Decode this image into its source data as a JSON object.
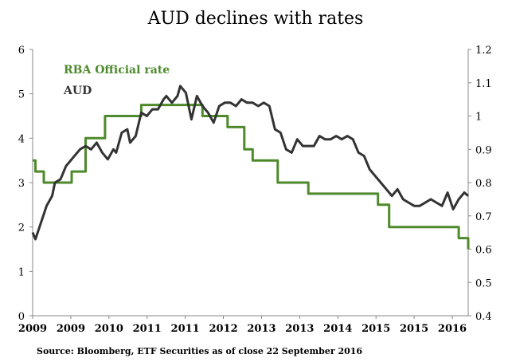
{
  "chart_data": {
    "type": "line",
    "title": "AUD declines with rates",
    "source": "Source: Bloomberg, ETF Securities as of close 22 September 2016",
    "x_tick_labels": [
      "2009",
      "2009",
      "2010",
      "2011",
      "2011",
      "2012",
      "2013",
      "2013",
      "2014",
      "2015",
      "2015",
      "2016"
    ],
    "left_axis": {
      "ylim": [
        0,
        6
      ],
      "ticks": [
        "0",
        "1",
        "2",
        "3",
        "4",
        "5",
        "6"
      ]
    },
    "right_axis": {
      "ylim": [
        0.4,
        1.2
      ],
      "ticks": [
        "0.4",
        "0.5",
        "0.6",
        "0.7",
        "0.8",
        "0.9",
        "1",
        "1.1",
        "1.2"
      ]
    },
    "xlim": [
      2008.9,
      2016.72
    ],
    "series": [
      {
        "name": "RBA Official rate",
        "axis": "left",
        "color": "#4e8a2c",
        "step": true,
        "x": [
          2008.9,
          2008.95,
          2009.1,
          2009.6,
          2009.85,
          2010.2,
          2010.85,
          2011.3,
          2011.95,
          2012.4,
          2012.7,
          2012.85,
          2013.3,
          2013.5,
          2013.85,
          2015.1,
          2015.3,
          2016.2,
          2016.55,
          2016.72
        ],
        "values": [
          3.5,
          3.25,
          3.0,
          3.25,
          4.0,
          4.5,
          4.75,
          4.75,
          4.5,
          4.25,
          3.75,
          3.5,
          3.0,
          3.0,
          2.75,
          2.5,
          2.0,
          2.0,
          1.75,
          1.5
        ]
      },
      {
        "name": "AUD",
        "axis": "right",
        "color": "#333333",
        "x": [
          2008.9,
          2008.95,
          2009.05,
          2009.15,
          2009.25,
          2009.3,
          2009.4,
          2009.5,
          2009.55,
          2009.65,
          2009.75,
          2009.85,
          2009.95,
          2010.05,
          2010.15,
          2010.25,
          2010.35,
          2010.4,
          2010.5,
          2010.6,
          2010.65,
          2010.75,
          2010.85,
          2010.95,
          2011.05,
          2011.15,
          2011.25,
          2011.3,
          2011.4,
          2011.5,
          2011.55,
          2011.65,
          2011.75,
          2011.85,
          2011.95,
          2012.05,
          2012.15,
          2012.25,
          2012.35,
          2012.45,
          2012.55,
          2012.65,
          2012.75,
          2012.85,
          2012.95,
          2013.05,
          2013.15,
          2013.25,
          2013.35,
          2013.45,
          2013.55,
          2013.65,
          2013.75,
          2013.85,
          2013.95,
          2014.05,
          2014.15,
          2014.25,
          2014.35,
          2014.45,
          2014.55,
          2014.65,
          2014.75,
          2014.85,
          2014.95,
          2015.05,
          2015.15,
          2015.25,
          2015.35,
          2015.45,
          2015.55,
          2015.65,
          2015.75,
          2015.85,
          2015.95,
          2016.05,
          2016.15,
          2016.25,
          2016.35,
          2016.45,
          2016.55,
          2016.65,
          2016.72
        ],
        "values": [
          0.65,
          0.63,
          0.68,
          0.73,
          0.76,
          0.8,
          0.81,
          0.85,
          0.86,
          0.88,
          0.9,
          0.91,
          0.9,
          0.92,
          0.89,
          0.87,
          0.9,
          0.89,
          0.95,
          0.96,
          0.92,
          0.94,
          1.01,
          1.0,
          1.02,
          1.02,
          1.05,
          1.06,
          1.04,
          1.06,
          1.09,
          1.07,
          0.99,
          1.06,
          1.03,
          1.01,
          0.98,
          1.03,
          1.04,
          1.04,
          1.03,
          1.05,
          1.04,
          1.04,
          1.03,
          1.04,
          1.03,
          0.96,
          0.95,
          0.9,
          0.89,
          0.93,
          0.91,
          0.91,
          0.91,
          0.94,
          0.93,
          0.93,
          0.94,
          0.93,
          0.94,
          0.93,
          0.89,
          0.88,
          0.84,
          0.82,
          0.8,
          0.78,
          0.76,
          0.78,
          0.75,
          0.74,
          0.73,
          0.73,
          0.74,
          0.75,
          0.74,
          0.73,
          0.77,
          0.72,
          0.75,
          0.77,
          0.76
        ]
      }
    ],
    "legend_position": "top-left",
    "grid": false
  }
}
